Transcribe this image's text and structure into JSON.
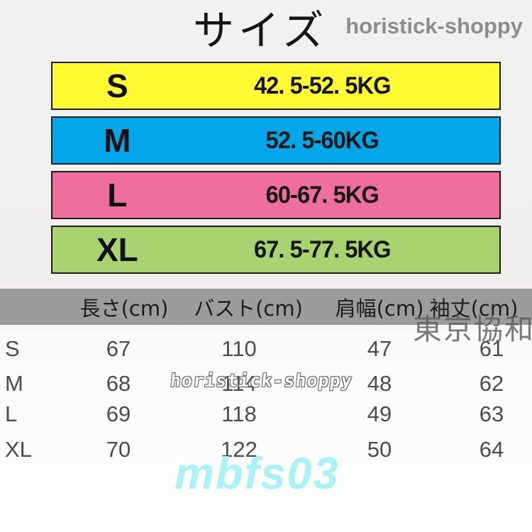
{
  "title": "サイズ",
  "watermarks": {
    "top_right": "horistick-shoppy",
    "center": "horistick-shoppy",
    "right_cjk": "東京協和",
    "bottom": "mbfs03"
  },
  "size_bars": [
    {
      "size": "S",
      "weight_range": "42. 5-52. 5KG",
      "color": "#fffa31"
    },
    {
      "size": "M",
      "weight_range": "52. 5-60KG",
      "color": "#02a6e9"
    },
    {
      "size": "L",
      "weight_range": "60-67. 5KG",
      "color": "#ee6f9e"
    },
    {
      "size": "XL",
      "weight_range": "67. 5-77. 5KG",
      "color": "#a9d371"
    }
  ],
  "measurement_table": {
    "columns": [
      "長さ(cm)",
      "バスト(cm)",
      "肩幅(cm)",
      "袖丈(cm)"
    ],
    "rows": [
      {
        "size": "S",
        "values": [
          "67",
          "110",
          "47",
          "61"
        ]
      },
      {
        "size": "M",
        "values": [
          "68",
          "114",
          "48",
          "62"
        ]
      },
      {
        "size": "L",
        "values": [
          "69",
          "118",
          "49",
          "63"
        ]
      },
      {
        "size": "XL",
        "values": [
          "70",
          "122",
          "50",
          "64"
        ]
      }
    ]
  },
  "colors": {
    "bar_border": "#1e1e1e",
    "header_band": "#9c9c9c",
    "table_text": "#4c4c4c",
    "watermark_gray": "#8d8d8d",
    "watermark_cyan": "#a9f2f5",
    "background": "#f0efed"
  }
}
